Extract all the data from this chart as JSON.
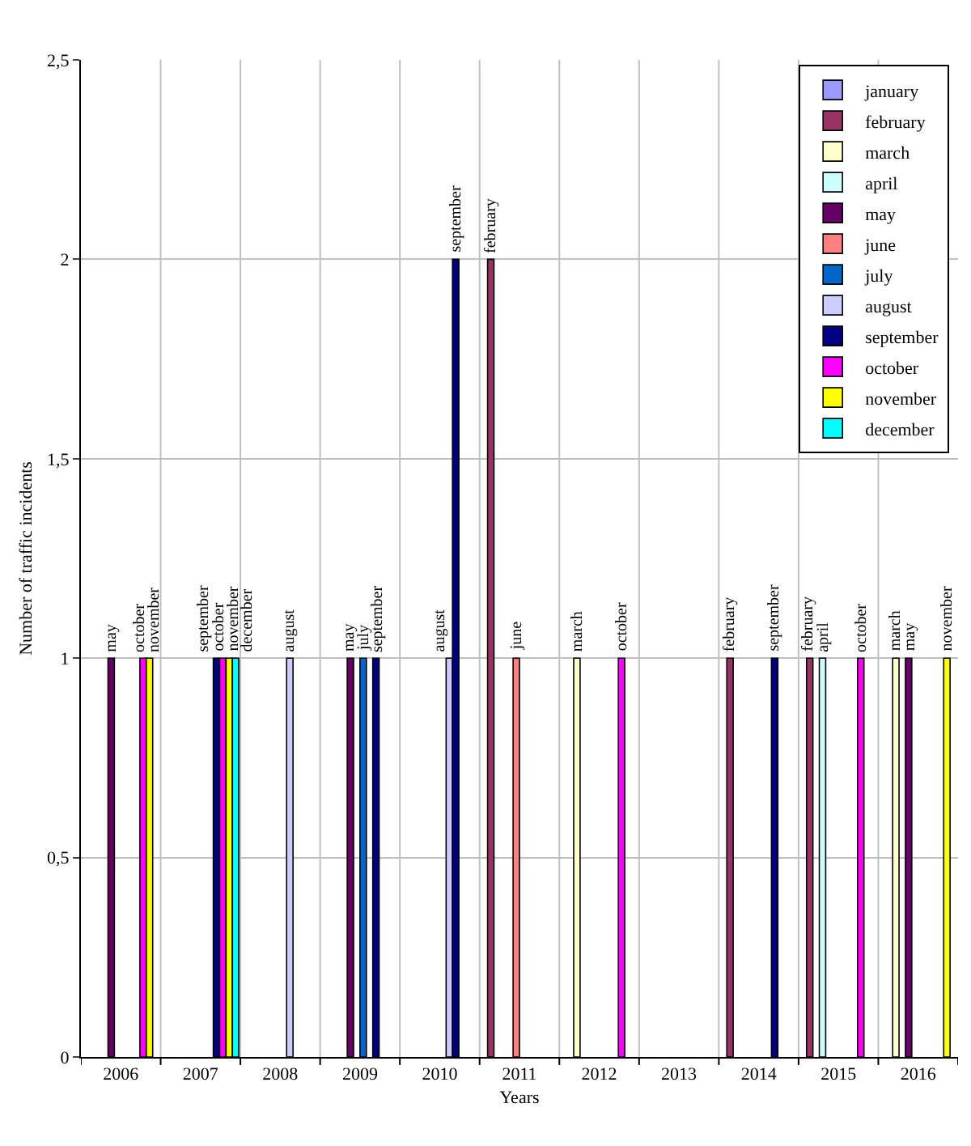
{
  "chart_data": {
    "type": "bar",
    "xlabel": "Years",
    "ylabel": "Number of traffic incidents",
    "categories": [
      "2006",
      "2007",
      "2008",
      "2009",
      "2010",
      "2011",
      "2012",
      "2013",
      "2014",
      "2015",
      "2016"
    ],
    "ylim": [
      0,
      2.5
    ],
    "yticks": [
      0,
      {
        "value": 0.5,
        "label": "0,5"
      },
      1,
      {
        "value": 1.5,
        "label": "1,5"
      },
      2,
      {
        "value": 2.5,
        "label": "2,5"
      }
    ],
    "grid": true,
    "legend": "top right",
    "series": [
      {
        "name": "january",
        "color": "#9999ff",
        "values": [
          null,
          null,
          null,
          null,
          null,
          null,
          null,
          null,
          null,
          null,
          null
        ],
        "value_labels": [
          null,
          null,
          null,
          null,
          null,
          null,
          null,
          null,
          null,
          null,
          null
        ]
      },
      {
        "name": "february",
        "color": "#993366",
        "values": [
          null,
          null,
          null,
          null,
          null,
          2,
          null,
          null,
          1,
          1,
          null
        ],
        "value_labels": [
          null,
          null,
          null,
          null,
          null,
          "february",
          null,
          null,
          "february",
          "february",
          null
        ]
      },
      {
        "name": "march",
        "color": "#ffffcc",
        "values": [
          null,
          null,
          null,
          null,
          null,
          null,
          1,
          null,
          null,
          null,
          1
        ],
        "value_labels": [
          null,
          null,
          null,
          null,
          null,
          null,
          "march",
          null,
          null,
          null,
          "march"
        ]
      },
      {
        "name": "april",
        "color": "#ccffff",
        "values": [
          null,
          null,
          null,
          null,
          null,
          null,
          null,
          null,
          null,
          1,
          null
        ],
        "value_labels": [
          null,
          null,
          null,
          null,
          null,
          null,
          null,
          null,
          null,
          "april",
          null
        ]
      },
      {
        "name": "may",
        "color": "#660066",
        "values": [
          1,
          null,
          null,
          1,
          null,
          null,
          null,
          null,
          null,
          null,
          1
        ],
        "value_labels": [
          "may",
          null,
          null,
          "may",
          null,
          null,
          null,
          null,
          null,
          null,
          "may"
        ]
      },
      {
        "name": "june",
        "color": "#ff8080",
        "values": [
          null,
          null,
          null,
          null,
          null,
          1,
          null,
          null,
          null,
          null,
          null
        ],
        "value_labels": [
          null,
          null,
          null,
          null,
          null,
          "june",
          null,
          null,
          null,
          null,
          null
        ]
      },
      {
        "name": "july",
        "color": "#0066cc",
        "values": [
          null,
          null,
          null,
          1,
          null,
          null,
          null,
          null,
          null,
          null,
          null
        ],
        "value_labels": [
          null,
          null,
          null,
          "july",
          null,
          null,
          null,
          null,
          null,
          null,
          null
        ]
      },
      {
        "name": "august",
        "color": "#ccccff",
        "values": [
          null,
          null,
          1,
          null,
          1,
          null,
          null,
          null,
          null,
          null,
          null
        ],
        "value_labels": [
          null,
          null,
          "august",
          null,
          "august",
          null,
          null,
          null,
          null,
          null,
          null
        ]
      },
      {
        "name": "september",
        "color": "#000080",
        "values": [
          null,
          1,
          null,
          1,
          2,
          null,
          null,
          null,
          1,
          null,
          null
        ],
        "value_labels": [
          null,
          "september",
          null,
          "september",
          "september",
          null,
          null,
          null,
          "september",
          null,
          null
        ]
      },
      {
        "name": "october",
        "color": "#ff00ff",
        "values": [
          1,
          1,
          null,
          null,
          null,
          null,
          1,
          null,
          null,
          1,
          null
        ],
        "value_labels": [
          "october",
          "october",
          null,
          null,
          null,
          null,
          "october",
          null,
          null,
          "october",
          null
        ]
      },
      {
        "name": "november",
        "color": "#ffff00",
        "values": [
          1,
          1,
          null,
          null,
          null,
          null,
          null,
          null,
          null,
          null,
          1
        ],
        "value_labels": [
          "november",
          "november",
          null,
          null,
          null,
          null,
          null,
          null,
          null,
          null,
          "november"
        ]
      },
      {
        "name": "december",
        "color": "#00ffff",
        "values": [
          null,
          1,
          null,
          null,
          null,
          null,
          null,
          null,
          null,
          null,
          null
        ],
        "value_labels": [
          null,
          "december",
          null,
          null,
          null,
          null,
          null,
          null,
          null,
          null,
          null
        ]
      }
    ]
  }
}
